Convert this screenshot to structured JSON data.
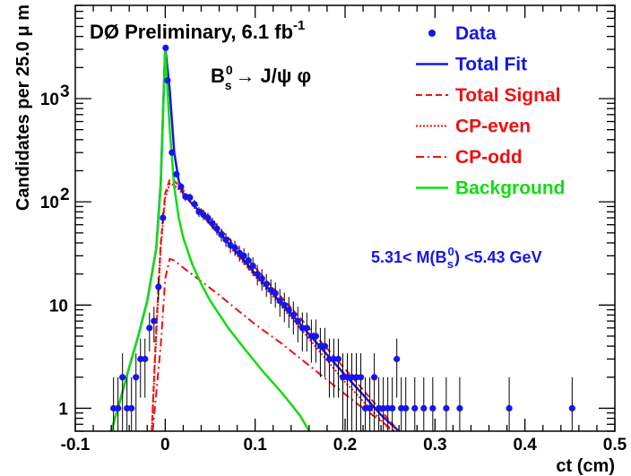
{
  "chart_data": {
    "type": "scatter",
    "experiment": "DØ Preliminary, 6.1 fb",
    "luminosity_exponent": "-1",
    "decay": {
      "parent": "B",
      "parent_sup": "0",
      "parent_sub": "s",
      "arrow": "→",
      "products": "J/ψ φ"
    },
    "mass_window": {
      "prefix": "5.31< M(B",
      "sup": "0",
      "sub": "s",
      "suffix": ") <5.43 GeV"
    },
    "xlabel": "ct  (cm)",
    "ylabel": "Candidates per 25.0 μ m",
    "xlim": [
      -0.1,
      0.5
    ],
    "ylim": [
      0.6,
      8000
    ],
    "yscale": "log",
    "xticks": [
      "-0.1",
      "0",
      "0.1",
      "0.2",
      "0.3",
      "0.4",
      "0.5"
    ],
    "yticks": [
      "1",
      "10",
      "10",
      "10"
    ],
    "ytick_exponents": [
      "",
      "",
      "2",
      "3"
    ],
    "legend": {
      "placement": "top-right",
      "entries": [
        {
          "label": "Data",
          "style": "marker",
          "color": "#1515ee"
        },
        {
          "label": "Total Fit",
          "style": "solid",
          "color": "#1515ee"
        },
        {
          "label": "Total Signal",
          "style": "dashed",
          "color": "#ee1111"
        },
        {
          "label": "CP-even",
          "style": "dotted",
          "color": "#ee1111"
        },
        {
          "label": "CP-odd",
          "style": "dashdot",
          "color": "#ee1111"
        },
        {
          "label": "Background",
          "style": "solid",
          "color": "#11dd11"
        }
      ]
    },
    "series": [
      {
        "name": "Data",
        "style": "marker",
        "color": "#1515ee",
        "points": [
          [
            -0.0575,
            1
          ],
          [
            -0.0525,
            1
          ],
          [
            -0.0475,
            2
          ],
          [
            -0.0425,
            1
          ],
          [
            -0.0375,
            1
          ],
          [
            -0.0325,
            2
          ],
          [
            -0.0275,
            3
          ],
          [
            -0.0225,
            3
          ],
          [
            -0.0175,
            6
          ],
          [
            -0.0125,
            7
          ],
          [
            -0.0075,
            15
          ],
          [
            -0.0025,
            70
          ],
          [
            0.0005,
            3100
          ],
          [
            0.0025,
            1500
          ],
          [
            0.0075,
            300
          ],
          [
            0.0125,
            185
          ],
          [
            0.0175,
            140
          ],
          [
            0.0225,
            112
          ],
          [
            0.0275,
            110
          ],
          [
            0.0325,
            95
          ],
          [
            0.0375,
            80
          ],
          [
            0.0425,
            75
          ],
          [
            0.0475,
            70
          ],
          [
            0.0525,
            62
          ],
          [
            0.0575,
            55
          ],
          [
            0.0625,
            48
          ],
          [
            0.0675,
            43
          ],
          [
            0.0725,
            38
          ],
          [
            0.0775,
            36
          ],
          [
            0.0825,
            32
          ],
          [
            0.0875,
            30
          ],
          [
            0.0925,
            27
          ],
          [
            0.0975,
            24
          ],
          [
            0.1025,
            20
          ],
          [
            0.1075,
            18
          ],
          [
            0.1125,
            16
          ],
          [
            0.1175,
            14
          ],
          [
            0.1225,
            13
          ],
          [
            0.1275,
            11
          ],
          [
            0.1325,
            10
          ],
          [
            0.1375,
            9
          ],
          [
            0.1425,
            8
          ],
          [
            0.1475,
            7
          ],
          [
            0.1525,
            6
          ],
          [
            0.1575,
            6
          ],
          [
            0.1625,
            5
          ],
          [
            0.1675,
            5
          ],
          [
            0.1725,
            4
          ],
          [
            0.1775,
            4
          ],
          [
            0.1825,
            3
          ],
          [
            0.1875,
            3
          ],
          [
            0.1925,
            3
          ],
          [
            0.1975,
            2
          ],
          [
            0.2025,
            2
          ],
          [
            0.2075,
            2
          ],
          [
            0.2125,
            2
          ],
          [
            0.2175,
            2
          ],
          [
            0.2225,
            1
          ],
          [
            0.2275,
            1
          ],
          [
            0.2325,
            2
          ],
          [
            0.2375,
            1
          ],
          [
            0.2425,
            1
          ],
          [
            0.2475,
            1
          ],
          [
            0.2525,
            1
          ],
          [
            0.2575,
            3
          ],
          [
            0.2625,
            1
          ],
          [
            0.2675,
            1
          ],
          [
            0.2775,
            1
          ],
          [
            0.2875,
            1
          ],
          [
            0.2975,
            1
          ],
          [
            0.3125,
            1
          ],
          [
            0.3275,
            1
          ],
          [
            0.3825,
            1
          ],
          [
            0.4525,
            1
          ]
        ]
      },
      {
        "name": "Total Fit",
        "style": "solid",
        "color": "#1515ee",
        "points": [
          [
            -0.06,
            0.6
          ],
          [
            -0.05,
            1.2
          ],
          [
            -0.04,
            2.5
          ],
          [
            -0.03,
            5
          ],
          [
            -0.02,
            11
          ],
          [
            -0.01,
            35
          ],
          [
            -0.005,
            150
          ],
          [
            0,
            3200
          ],
          [
            0.005,
            1200
          ],
          [
            0.01,
            300
          ],
          [
            0.015,
            160
          ],
          [
            0.02,
            120
          ],
          [
            0.03,
            95
          ],
          [
            0.04,
            78
          ],
          [
            0.05,
            62
          ],
          [
            0.06,
            50
          ],
          [
            0.07,
            40
          ],
          [
            0.08,
            32
          ],
          [
            0.09,
            25.5
          ],
          [
            0.1,
            20
          ],
          [
            0.12,
            12.8
          ],
          [
            0.14,
            8.2
          ],
          [
            0.16,
            5.2
          ],
          [
            0.18,
            3.3
          ],
          [
            0.2,
            2.1
          ],
          [
            0.22,
            1.35
          ],
          [
            0.24,
            0.86
          ],
          [
            0.26,
            0.6
          ]
        ]
      },
      {
        "name": "Total Signal",
        "style": "dashed",
        "color": "#ee1111",
        "points": [
          [
            -0.015,
            0.6
          ],
          [
            -0.01,
            6
          ],
          [
            -0.005,
            40
          ],
          [
            0,
            120
          ],
          [
            0.005,
            165
          ],
          [
            0.01,
            160
          ],
          [
            0.02,
            130
          ],
          [
            0.03,
            105
          ],
          [
            0.05,
            68
          ],
          [
            0.07,
            45
          ],
          [
            0.1,
            23
          ],
          [
            0.15,
            7.5
          ],
          [
            0.2,
            2.4
          ],
          [
            0.25,
            0.75
          ],
          [
            0.26,
            0.6
          ]
        ]
      },
      {
        "name": "CP-even",
        "style": "dotted",
        "color": "#ee1111",
        "points": [
          [
            -0.015,
            0.6
          ],
          [
            -0.01,
            5
          ],
          [
            -0.005,
            35
          ],
          [
            0,
            110
          ],
          [
            0.005,
            150
          ],
          [
            0.01,
            145
          ],
          [
            0.02,
            118
          ],
          [
            0.03,
            95
          ],
          [
            0.05,
            60
          ],
          [
            0.07,
            38
          ],
          [
            0.1,
            19
          ],
          [
            0.15,
            6
          ],
          [
            0.2,
            1.8
          ],
          [
            0.25,
            0.62
          ]
        ]
      },
      {
        "name": "CP-odd",
        "style": "dashdot",
        "color": "#ee1111",
        "points": [
          [
            -0.014,
            0.6
          ],
          [
            -0.005,
            4
          ],
          [
            0,
            18
          ],
          [
            0.005,
            28
          ],
          [
            0.01,
            27
          ],
          [
            0.02,
            23
          ],
          [
            0.04,
            17
          ],
          [
            0.06,
            12.5
          ],
          [
            0.08,
            9
          ],
          [
            0.1,
            6.5
          ],
          [
            0.13,
            4.2
          ],
          [
            0.16,
            2.6
          ],
          [
            0.19,
            1.6
          ],
          [
            0.22,
            1
          ],
          [
            0.24,
            0.75
          ],
          [
            0.255,
            0.6
          ]
        ]
      },
      {
        "name": "Background",
        "style": "solid",
        "color": "#11dd11",
        "points": [
          [
            -0.06,
            0.6
          ],
          [
            -0.05,
            1.2
          ],
          [
            -0.04,
            2.5
          ],
          [
            -0.03,
            5
          ],
          [
            -0.02,
            11
          ],
          [
            -0.01,
            35
          ],
          [
            -0.005,
            140
          ],
          [
            0,
            3000
          ],
          [
            0.005,
            500
          ],
          [
            0.01,
            140
          ],
          [
            0.015,
            70
          ],
          [
            0.02,
            45
          ],
          [
            0.03,
            25
          ],
          [
            0.04,
            16
          ],
          [
            0.05,
            11
          ],
          [
            0.07,
            6
          ],
          [
            0.09,
            3.6
          ],
          [
            0.11,
            2.2
          ],
          [
            0.13,
            1.4
          ],
          [
            0.15,
            0.85
          ],
          [
            0.16,
            0.6
          ]
        ]
      }
    ]
  }
}
